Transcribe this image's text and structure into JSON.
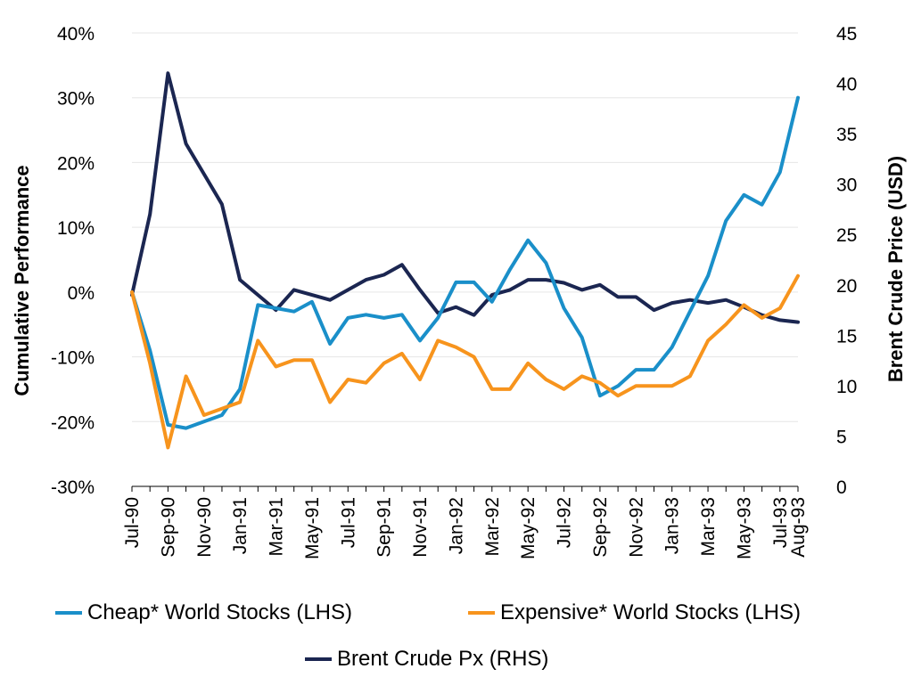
{
  "chart_data": {
    "type": "line",
    "title": "",
    "xlabel": "",
    "ylabel_left": "Cumulative Performance",
    "ylabel_right": "Brent Crude Price (USD)",
    "ylim_left": [
      -30,
      40
    ],
    "ylim_right": [
      0,
      45
    ],
    "grid": true,
    "legend_position": "bottom",
    "y_ticks_left": [
      "40%",
      "30%",
      "20%",
      "10%",
      "0%",
      "-10%",
      "-20%",
      "-30%"
    ],
    "y_tick_values_left": [
      40,
      30,
      20,
      10,
      0,
      -10,
      -20,
      -30
    ],
    "y_ticks_right": [
      "45",
      "40",
      "35",
      "30",
      "25",
      "20",
      "15",
      "10",
      "5",
      "0"
    ],
    "y_tick_values_right": [
      45,
      40,
      35,
      30,
      25,
      20,
      15,
      10,
      5,
      0
    ],
    "x": [
      "Jul-90",
      "Aug-90",
      "Sep-90",
      "Oct-90",
      "Nov-90",
      "Dec-90",
      "Jan-91",
      "Feb-91",
      "Mar-91",
      "Apr-91",
      "May-91",
      "Jun-91",
      "Jul-91",
      "Aug-91",
      "Sep-91",
      "Oct-91",
      "Nov-91",
      "Dec-91",
      "Jan-92",
      "Feb-92",
      "Mar-92",
      "Apr-92",
      "May-92",
      "Jun-92",
      "Jul-92",
      "Aug-92",
      "Sep-92",
      "Oct-92",
      "Nov-92",
      "Dec-92",
      "Jan-93",
      "Feb-93",
      "Mar-93",
      "Apr-93",
      "May-93",
      "Jun-93",
      "Jul-93",
      "Aug-93"
    ],
    "x_tick_labels": [
      "Jul-90",
      "Sep-90",
      "Nov-90",
      "Jan-91",
      "Mar-91",
      "May-91",
      "Jul-91",
      "Sep-91",
      "Nov-91",
      "Jan-92",
      "Mar-92",
      "May-92",
      "Jul-92",
      "Sep-92",
      "Nov-92",
      "Jan-93",
      "Mar-93",
      "May-93",
      "Jul-93",
      "Aug-93"
    ],
    "x_tick_indices": [
      0,
      2,
      4,
      6,
      8,
      10,
      12,
      14,
      16,
      18,
      20,
      22,
      24,
      26,
      28,
      30,
      32,
      34,
      36,
      37
    ],
    "series": [
      {
        "name": "Cheap* World Stocks (LHS)",
        "axis": "left",
        "color": "#1a8fc9",
        "values": [
          0,
          -9,
          -20.5,
          -21,
          -20,
          -19,
          -15,
          -2,
          -2.5,
          -3,
          -1.5,
          -8,
          -4,
          -3.5,
          -4,
          -3.5,
          -7.5,
          -4,
          1.5,
          1.5,
          -1.5,
          3.5,
          8,
          4.5,
          -2.5,
          -7,
          -16,
          -14.5,
          -12,
          -12,
          -8.5,
          -3,
          2.5,
          11,
          15,
          13.5,
          18.5,
          30
        ]
      },
      {
        "name": "Expensive* World Stocks (LHS)",
        "axis": "left",
        "color": "#f7941d",
        "values": [
          0,
          -11,
          -24,
          -13,
          -19,
          -18,
          -17,
          -7.5,
          -11.5,
          -10.5,
          -10.5,
          -17,
          -13.5,
          -14,
          -11,
          -9.5,
          -13.5,
          -7.5,
          -8.5,
          -10,
          -15,
          -15,
          -11,
          -13.5,
          -15,
          -13,
          -14,
          -16,
          -14.5,
          -14.5,
          -14.5,
          -13,
          -7.5,
          -5,
          -2,
          -4,
          -2.5,
          2.5
        ]
      },
      {
        "name": "Brent Crude Px (RHS)",
        "axis": "right",
        "color": "#1b2651",
        "values": [
          19,
          27,
          41,
          34,
          31,
          28,
          20.5,
          19,
          17.5,
          19.5,
          19,
          18.5,
          19.5,
          20.5,
          21,
          22,
          19.5,
          17.2,
          17.8,
          17,
          19,
          19.5,
          20.5,
          20.5,
          20.2,
          19.5,
          20,
          18.8,
          18.8,
          17.5,
          18.2,
          18.5,
          18.2,
          18.5,
          17.8,
          17,
          16.5,
          16.3
        ]
      }
    ]
  }
}
